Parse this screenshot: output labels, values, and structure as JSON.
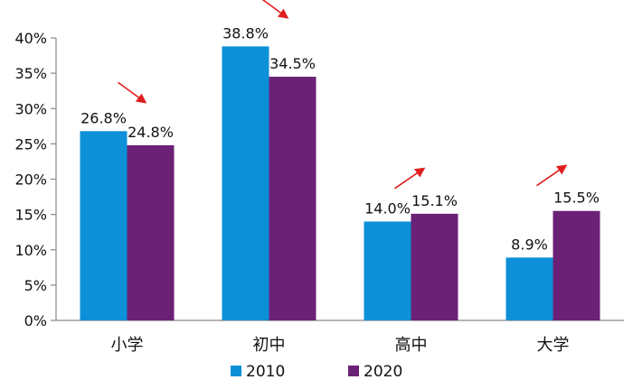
{
  "chart_data": {
    "type": "bar",
    "categories": [
      "小学",
      "初中",
      "高中",
      "大学"
    ],
    "series": [
      {
        "name": "2010",
        "values": [
          26.8,
          38.8,
          14.0,
          8.9
        ],
        "labels": [
          "26.8%",
          "38.8%",
          "14.0%",
          "8.9%"
        ],
        "color": "#0e90d8"
      },
      {
        "name": "2020",
        "values": [
          24.8,
          34.5,
          15.1,
          15.5
        ],
        "labels": [
          "24.8%",
          "34.5%",
          "15.1%",
          "15.5%"
        ],
        "color": "#6b2176"
      }
    ],
    "ylim": [
      0,
      40
    ],
    "yticks": [
      {
        "value": 0,
        "label": "0%"
      },
      {
        "value": 5,
        "label": "5%"
      },
      {
        "value": 10,
        "label": "10%"
      },
      {
        "value": 15,
        "label": "15%"
      },
      {
        "value": 20,
        "label": "20%"
      },
      {
        "value": 25,
        "label": "25%"
      },
      {
        "value": 30,
        "label": "30%"
      },
      {
        "value": 35,
        "label": "35%"
      },
      {
        "value": 40,
        "label": "40%"
      }
    ],
    "title": "",
    "xlabel": "",
    "ylabel": "",
    "grid": false,
    "legend_position": "bottom",
    "annotations": {
      "arrow_color": "#e01e1e",
      "arrows": [
        {
          "category": "小学",
          "direction": "down"
        },
        {
          "category": "初中",
          "direction": "down"
        },
        {
          "category": "高中",
          "direction": "up"
        },
        {
          "category": "大学",
          "direction": "up"
        }
      ]
    }
  }
}
